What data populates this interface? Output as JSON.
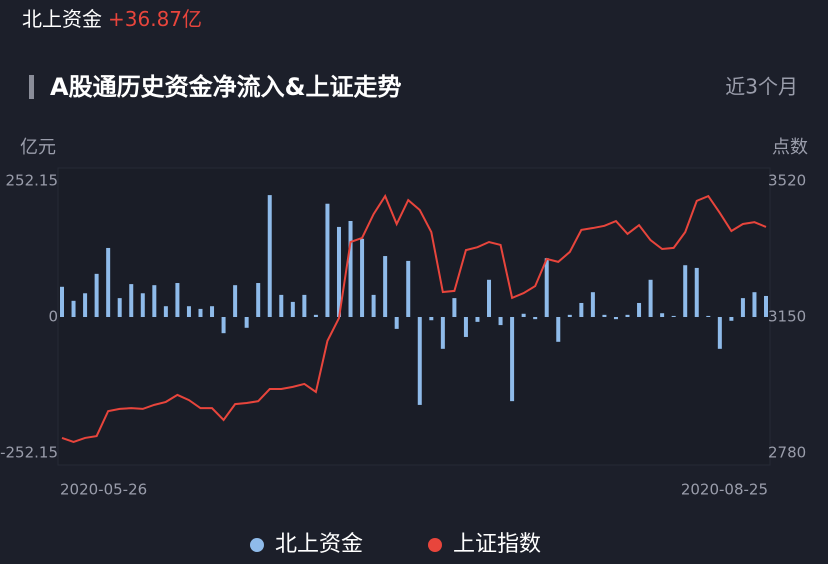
{
  "header": {
    "label": "北上资金",
    "value": "+36.87亿"
  },
  "period": "近3个月",
  "chart_data": {
    "type": "bar-line",
    "title": "A股通历史资金净流入&上证走势",
    "y_label": "亿元",
    "y2_label": "点数",
    "categories": [
      "2020-05-26",
      null,
      null,
      null,
      null,
      null,
      null,
      null,
      null,
      null,
      null,
      null,
      null,
      null,
      null,
      null,
      null,
      null,
      null,
      null,
      null,
      null,
      null,
      null,
      null,
      null,
      null,
      null,
      null,
      null,
      null,
      null,
      null,
      null,
      null,
      null,
      null,
      null,
      null,
      null,
      null,
      null,
      null,
      null,
      null,
      null,
      null,
      null,
      null,
      null,
      null,
      null,
      null,
      null,
      null,
      null,
      null,
      null,
      null,
      null,
      null,
      "2020-08-25"
    ],
    "ylim": [
      -252.15,
      252.15
    ],
    "yticks": [
      252.15,
      0,
      -252.15
    ],
    "y2lim": [
      2780,
      3520
    ],
    "y2ticks": [
      3520,
      3150,
      2780
    ],
    "grid": false,
    "series": [
      {
        "name": "北上资金",
        "type": "bar",
        "color": "#8fbbea",
        "values": [
          56,
          30,
          44,
          80,
          128,
          35,
          61,
          44,
          59,
          20,
          63,
          20,
          15,
          20,
          -30,
          59,
          -20,
          63,
          226,
          41,
          28,
          41,
          4,
          210,
          167,
          178,
          145,
          41,
          113,
          -22,
          104,
          -163,
          -6,
          -59,
          35,
          -37,
          -9,
          69,
          -15,
          -156,
          6,
          -4,
          109,
          -46,
          4,
          26,
          46,
          4,
          -4,
          4,
          26,
          69,
          7,
          2,
          96,
          91,
          2,
          -59,
          -7,
          35,
          46,
          39
        ]
      },
      {
        "name": "上证指数",
        "type": "line",
        "axis": "y2",
        "color": "#e8453c",
        "values": [
          2821,
          2810,
          2821,
          2826,
          2894,
          2900,
          2902,
          2900,
          2911,
          2919,
          2938,
          2924,
          2902,
          2902,
          2870,
          2913,
          2916,
          2921,
          2954,
          2954,
          2960,
          2968,
          2946,
          3085,
          3147,
          3354,
          3365,
          3430,
          3479,
          3403,
          3468,
          3441,
          3381,
          3218,
          3221,
          3332,
          3340,
          3354,
          3346,
          3202,
          3215,
          3234,
          3308,
          3300,
          3327,
          3387,
          3392,
          3398,
          3411,
          3376,
          3400,
          3359,
          3335,
          3338,
          3381,
          3466,
          3479,
          3433,
          3384,
          3403,
          3408,
          3395
        ]
      }
    ]
  }
}
